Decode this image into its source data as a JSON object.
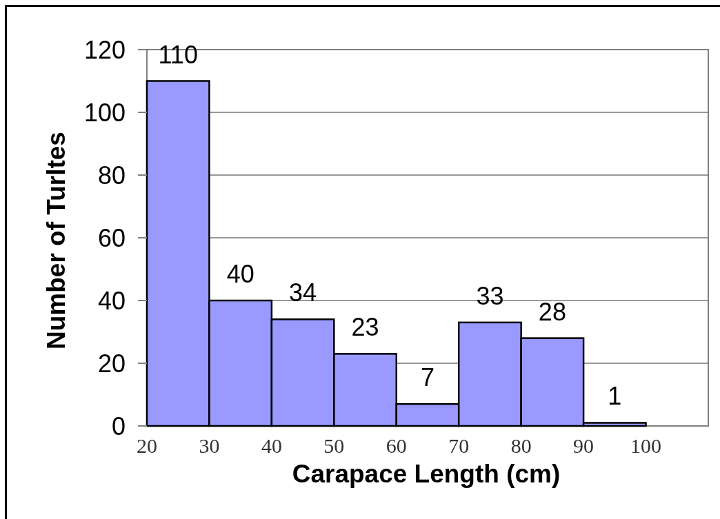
{
  "chart_data": {
    "type": "histogram",
    "xlabel": "Carapace Length (cm)",
    "ylabel": "Number of Turltes",
    "bins": [
      20,
      30,
      40,
      50,
      60,
      70,
      80,
      90,
      100
    ],
    "values": [
      110,
      40,
      34,
      23,
      7,
      33,
      28,
      1
    ],
    "color": "#9999ff",
    "xlim": [
      20,
      110
    ],
    "xticks": [
      20,
      30,
      40,
      50,
      60,
      70,
      80,
      90,
      100
    ],
    "ylim": [
      0,
      120
    ],
    "yticks": [
      0,
      20,
      40,
      60,
      80,
      100,
      120
    ],
    "grid": "y",
    "data_labels": true
  }
}
